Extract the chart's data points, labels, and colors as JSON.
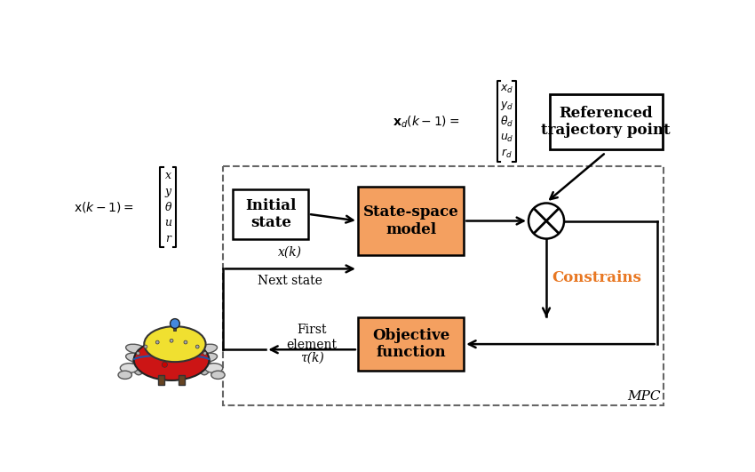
{
  "bg_color": "#ffffff",
  "box_fill_orange": "#F4A060",
  "box_edge": "#000000",
  "white_fill": "#ffffff",
  "dashed_color": "#666666",
  "arrow_color": "#000000",
  "constrains_color": "#E87722",
  "mpc_label": "MPC",
  "init_label": "Initial\nstate",
  "ssm_label": "State-space\nmodel",
  "obj_label": "Objective\nfunction",
  "ref_label": "Referenced\ntrajectory point",
  "constrains_label": "Constrains",
  "first_element_label": "First\nelement",
  "next_state_label": "Next state",
  "xk_label": "x(k)",
  "tau_label": "τ(k)",
  "matrix_x": [
    "x",
    "y",
    "θ",
    "u",
    "r"
  ],
  "matrix_xd": [
    "x_d",
    "y_d",
    "θ_d",
    "u_d",
    "r_d"
  ],
  "robot_body_color": "#CC1111",
  "robot_dome_color": "#F0E020",
  "robot_sensor_color": "#4499EE",
  "robot_thruster_color": "#CCCCCC"
}
